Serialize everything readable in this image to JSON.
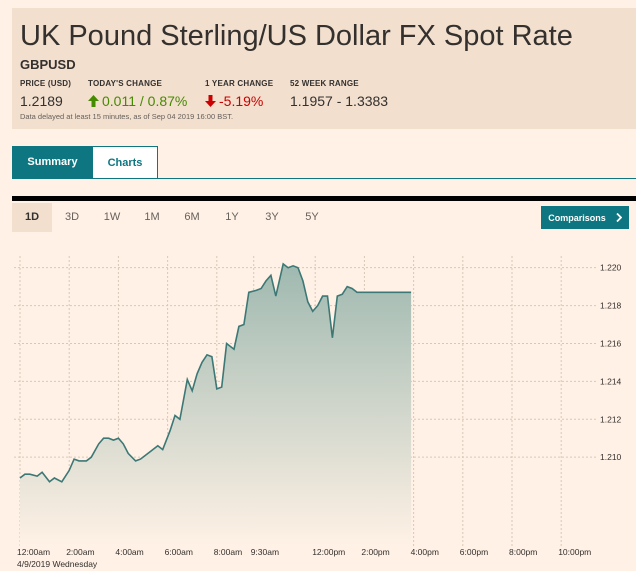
{
  "header": {
    "title": "UK Pound Sterling/US Dollar FX Spot Rate",
    "symbol": "GBPUSD",
    "stats": {
      "price_label": "PRICE (USD)",
      "price_value": "1.2189",
      "change_label": "TODAY'S CHANGE",
      "change_value": "0.011 / 0.87%",
      "year_label": "1 YEAR CHANGE",
      "year_value": "-5.19%",
      "range_label": "52 WEEK RANGE",
      "range_value": "1.1957 - 1.3383"
    },
    "disclaimer": "Data delayed at least 15 minutes, as of Sep 04 2019 16:00 BST.",
    "colors": {
      "up": "#458b00",
      "down": "#cc0000"
    }
  },
  "tabs": {
    "summary": "Summary",
    "charts": "Charts"
  },
  "ranges": [
    "1D",
    "3D",
    "1W",
    "1M",
    "6M",
    "1Y",
    "3Y",
    "5Y"
  ],
  "active_range": "1D",
  "comparisons": {
    "label": "Comparisons",
    "icon": "chevron-right-icon"
  },
  "chart_data": {
    "type": "area",
    "x_ticks": [
      "12:00am",
      "2:00am",
      "4:00am",
      "6:00am",
      "8:00am",
      "9:30am",
      "12:00pm",
      "2:00pm",
      "4:00pm",
      "6:00pm",
      "8:00pm",
      "10:00pm"
    ],
    "x_tick_hours": [
      0,
      2,
      4,
      6,
      8,
      9.5,
      12,
      14,
      16,
      18,
      20,
      22
    ],
    "y_ticks": [
      "1.210",
      "1.212",
      "1.214",
      "1.216",
      "1.218",
      "1.220"
    ],
    "ylim": [
      1.2089,
      1.2203
    ],
    "date_label": "4/9/2019 Wednesday",
    "series": [
      {
        "x_hours": [
          0,
          0.2,
          0.4,
          0.7,
          0.9,
          1.2,
          1.4,
          1.7,
          2.0,
          2.2,
          2.4,
          2.7,
          2.9,
          3.2,
          3.4,
          3.6,
          3.8,
          4.0,
          4.2,
          4.4,
          4.7,
          4.9,
          5.1,
          5.3,
          5.6,
          5.8,
          6.1,
          6.3,
          6.5,
          6.8,
          7.0,
          7.2,
          7.4,
          7.6,
          7.8,
          8.0,
          8.2,
          8.4,
          8.7,
          8.9,
          9.1,
          9.3,
          9.6,
          9.8,
          10.0,
          10.2,
          10.4,
          10.7,
          10.9,
          11.1,
          11.3,
          11.5,
          11.7,
          11.9,
          12.1,
          12.3,
          12.5,
          12.7,
          12.9,
          13.1,
          13.3,
          13.5,
          13.7,
          13.9,
          14.1,
          14.3,
          14.5,
          14.7,
          14.9,
          15.1,
          15.3,
          15.5,
          15.7,
          15.9
        ],
        "values": [
          1.2089,
          1.2091,
          1.2091,
          1.209,
          1.2092,
          1.2087,
          1.2089,
          1.2087,
          1.2093,
          1.2099,
          1.2098,
          1.2098,
          1.21,
          1.2107,
          1.211,
          1.211,
          1.2109,
          1.211,
          1.2107,
          1.2102,
          1.2098,
          1.2099,
          1.2101,
          1.2103,
          1.2106,
          1.2104,
          1.2114,
          1.2122,
          1.212,
          1.2141,
          1.2135,
          1.2144,
          1.215,
          1.2154,
          1.2153,
          1.2136,
          1.2137,
          1.216,
          1.2157,
          1.2169,
          1.217,
          1.2187,
          1.2188,
          1.2189,
          1.2193,
          1.2196,
          1.2185,
          1.2202,
          1.22,
          1.2201,
          1.22,
          1.2193,
          1.2182,
          1.2177,
          1.218,
          1.2185,
          1.2185,
          1.2163,
          1.2185,
          1.2186,
          1.219,
          1.2189,
          1.2187,
          1.2187,
          1.2187,
          1.2187,
          1.2187,
          1.2187,
          1.2187,
          1.2187,
          1.2187,
          1.2187,
          1.2187,
          1.2187
        ],
        "color": "#3c7876",
        "fill_top": "#9fb9b0",
        "fill_bottom": "#fff1e5"
      }
    ]
  }
}
